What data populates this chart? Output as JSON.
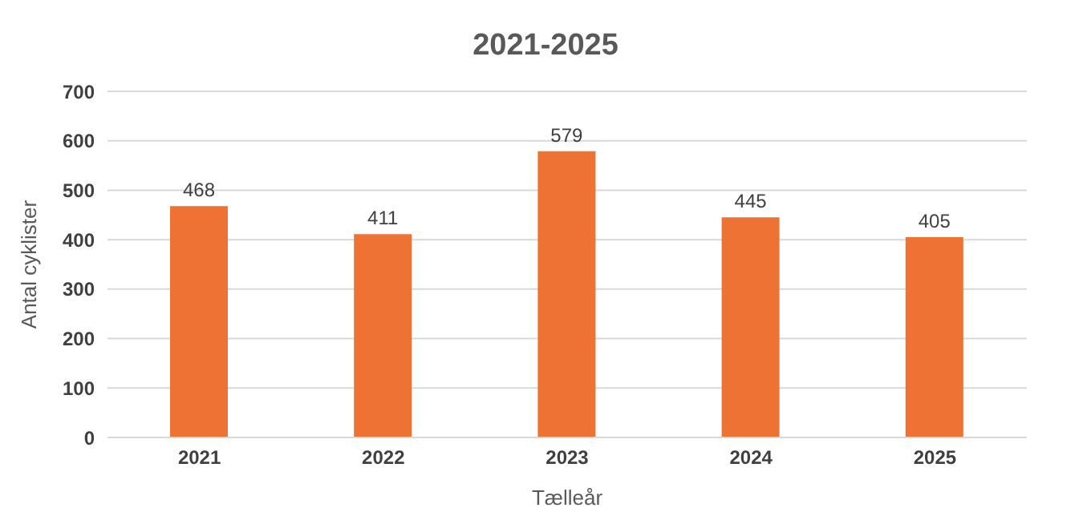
{
  "chart_data": {
    "type": "bar",
    "title": "2021-2025",
    "xlabel": "Tælleår",
    "ylabel": "Antal cyklister",
    "categories": [
      "2021",
      "2022",
      "2023",
      "2024",
      "2025"
    ],
    "values": [
      468,
      411,
      579,
      445,
      405
    ],
    "color": "#ed7233",
    "ylim": [
      0,
      700
    ],
    "yticks": [
      0,
      100,
      200,
      300,
      400,
      500,
      600,
      700
    ],
    "grid": "y",
    "data_labels": true
  }
}
